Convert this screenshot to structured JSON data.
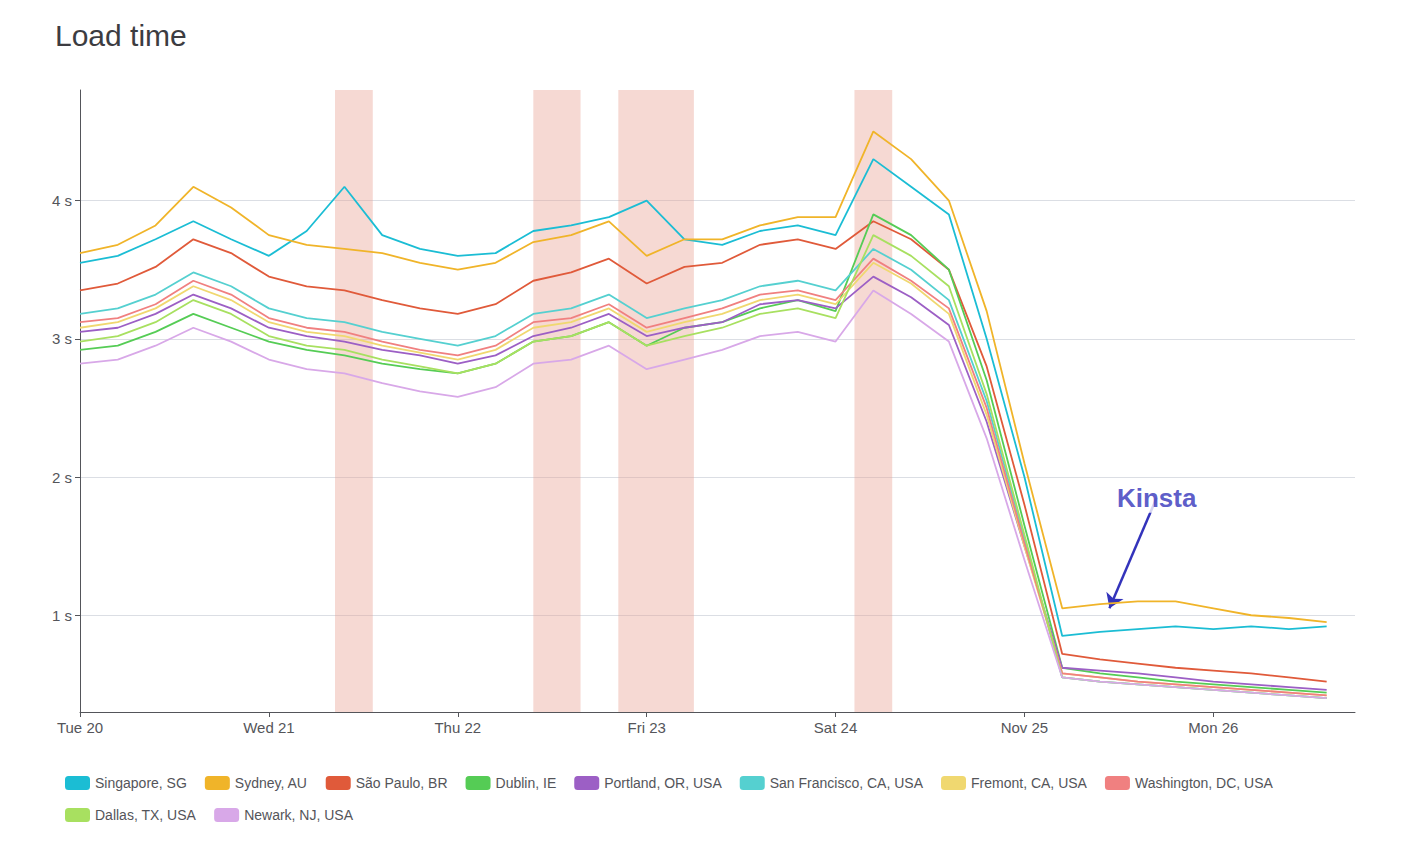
{
  "chart_data": {
    "type": "line",
    "title": "Load time",
    "x": [
      0,
      4,
      8,
      12,
      16,
      20,
      24,
      28,
      32,
      36,
      40,
      44,
      48,
      52,
      56,
      60,
      64,
      68,
      72,
      76,
      80,
      84,
      88,
      92,
      96,
      100,
      104,
      108,
      112,
      116,
      120,
      124,
      128,
      132
    ],
    "xlim": [
      0,
      135
    ],
    "xticks": [
      {
        "value": 0,
        "label": "Tue 20"
      },
      {
        "value": 20,
        "label": "Wed 21"
      },
      {
        "value": 40,
        "label": "Thu 22"
      },
      {
        "value": 60,
        "label": "Fri 23"
      },
      {
        "value": 80,
        "label": "Sat 24"
      },
      {
        "value": 100,
        "label": "Nov 25"
      },
      {
        "value": 120,
        "label": "Mon 26"
      }
    ],
    "ylim": [
      0.3,
      4.8
    ],
    "yticks": [
      {
        "value": 1,
        "label": "1 s"
      },
      {
        "value": 2,
        "label": "2 s"
      },
      {
        "value": 3,
        "label": "3 s"
      },
      {
        "value": 4,
        "label": "4 s"
      }
    ],
    "grid": true,
    "legend": "bottom",
    "series": [
      {
        "name": "Singapore, SG",
        "color": "#1bbdd4",
        "values": [
          3.55,
          3.6,
          3.72,
          3.85,
          3.72,
          3.6,
          3.78,
          4.1,
          3.75,
          3.65,
          3.6,
          3.62,
          3.78,
          3.82,
          3.88,
          4.0,
          3.72,
          3.68,
          3.78,
          3.82,
          3.75,
          4.3,
          4.1,
          3.9,
          3.0,
          2.0,
          0.85,
          0.88,
          0.9,
          0.92,
          0.9,
          0.92,
          0.9,
          0.92
        ]
      },
      {
        "name": "Sydney, AU",
        "color": "#f0b429",
        "values": [
          3.62,
          3.68,
          3.82,
          4.1,
          3.95,
          3.75,
          3.68,
          3.65,
          3.62,
          3.55,
          3.5,
          3.55,
          3.7,
          3.75,
          3.85,
          3.6,
          3.72,
          3.72,
          3.82,
          3.88,
          3.88,
          4.5,
          4.3,
          4.0,
          3.2,
          2.1,
          1.05,
          1.08,
          1.1,
          1.1,
          1.05,
          1.0,
          0.98,
          0.95
        ]
      },
      {
        "name": "São Paulo, BR",
        "color": "#e05a3a",
        "values": [
          3.35,
          3.4,
          3.52,
          3.72,
          3.62,
          3.45,
          3.38,
          3.35,
          3.28,
          3.22,
          3.18,
          3.25,
          3.42,
          3.48,
          3.58,
          3.4,
          3.52,
          3.55,
          3.68,
          3.72,
          3.65,
          3.85,
          3.72,
          3.5,
          2.8,
          1.8,
          0.72,
          0.68,
          0.65,
          0.62,
          0.6,
          0.58,
          0.55,
          0.52
        ]
      },
      {
        "name": "Dublin, IE",
        "color": "#55cc55",
        "values": [
          2.92,
          2.95,
          3.05,
          3.18,
          3.08,
          2.98,
          2.92,
          2.88,
          2.82,
          2.78,
          2.75,
          2.82,
          2.98,
          3.02,
          3.12,
          2.95,
          3.08,
          3.12,
          3.22,
          3.28,
          3.2,
          3.9,
          3.75,
          3.5,
          2.7,
          1.65,
          0.62,
          0.58,
          0.55,
          0.52,
          0.5,
          0.48,
          0.46,
          0.44
        ]
      },
      {
        "name": "Portland, OR, USA",
        "color": "#9c5fc5",
        "values": [
          3.05,
          3.08,
          3.18,
          3.32,
          3.22,
          3.08,
          3.02,
          2.98,
          2.92,
          2.88,
          2.82,
          2.88,
          3.02,
          3.08,
          3.18,
          3.02,
          3.08,
          3.12,
          3.25,
          3.28,
          3.22,
          3.45,
          3.3,
          3.1,
          2.4,
          1.5,
          0.62,
          0.6,
          0.58,
          0.55,
          0.52,
          0.5,
          0.48,
          0.46
        ]
      },
      {
        "name": "San Francisco, CA, USA",
        "color": "#55d0d0",
        "values": [
          3.18,
          3.22,
          3.32,
          3.48,
          3.38,
          3.22,
          3.15,
          3.12,
          3.05,
          3.0,
          2.95,
          3.02,
          3.18,
          3.22,
          3.32,
          3.15,
          3.22,
          3.28,
          3.38,
          3.42,
          3.35,
          3.65,
          3.5,
          3.28,
          2.55,
          1.55,
          0.55,
          0.52,
          0.5,
          0.48,
          0.46,
          0.44,
          0.42,
          0.4
        ]
      },
      {
        "name": "Fremont, CA, USA",
        "color": "#f0d870",
        "values": [
          3.08,
          3.12,
          3.22,
          3.38,
          3.28,
          3.12,
          3.05,
          3.02,
          2.95,
          2.9,
          2.85,
          2.92,
          3.08,
          3.12,
          3.22,
          3.05,
          3.12,
          3.18,
          3.28,
          3.32,
          3.25,
          3.55,
          3.4,
          3.18,
          2.45,
          1.5,
          0.58,
          0.55,
          0.52,
          0.5,
          0.48,
          0.46,
          0.44,
          0.42
        ]
      },
      {
        "name": "Washington, DC, USA",
        "color": "#f08080",
        "values": [
          3.12,
          3.15,
          3.25,
          3.42,
          3.32,
          3.15,
          3.08,
          3.05,
          2.98,
          2.92,
          2.88,
          2.95,
          3.12,
          3.15,
          3.25,
          3.08,
          3.15,
          3.22,
          3.32,
          3.35,
          3.28,
          3.58,
          3.42,
          3.22,
          2.5,
          1.52,
          0.58,
          0.55,
          0.52,
          0.5,
          0.48,
          0.46,
          0.44,
          0.42
        ]
      },
      {
        "name": "Dallas, TX, USA",
        "color": "#a8e060",
        "values": [
          2.98,
          3.02,
          3.12,
          3.28,
          3.18,
          3.02,
          2.95,
          2.92,
          2.85,
          2.8,
          2.75,
          2.82,
          2.98,
          3.02,
          3.12,
          2.95,
          3.02,
          3.08,
          3.18,
          3.22,
          3.15,
          3.75,
          3.6,
          3.38,
          2.6,
          1.58,
          0.55,
          0.52,
          0.5,
          0.48,
          0.46,
          0.44,
          0.42,
          0.4
        ]
      },
      {
        "name": "Newark, NJ, USA",
        "color": "#d8a8e8",
        "values": [
          2.82,
          2.85,
          2.95,
          3.08,
          2.98,
          2.85,
          2.78,
          2.75,
          2.68,
          2.62,
          2.58,
          2.65,
          2.82,
          2.85,
          2.95,
          2.78,
          2.85,
          2.92,
          3.02,
          3.05,
          2.98,
          3.35,
          3.18,
          2.98,
          2.28,
          1.4,
          0.55,
          0.52,
          0.5,
          0.48,
          0.46,
          0.44,
          0.42,
          0.4
        ]
      }
    ],
    "shaded_regions": [
      {
        "x_start": 27,
        "x_end": 31,
        "color": "#e8a090"
      },
      {
        "x_start": 48,
        "x_end": 53,
        "color": "#e8a090"
      },
      {
        "x_start": 57,
        "x_end": 65,
        "color": "#e8a090"
      },
      {
        "x_start": 82,
        "x_end": 86,
        "color": "#e8a090"
      }
    ],
    "annotations": [
      {
        "text": "Kinsta",
        "x": 114,
        "y": 1.85,
        "arrow_x": 109,
        "arrow_y": 1.05,
        "color": "#3333bb"
      }
    ]
  }
}
